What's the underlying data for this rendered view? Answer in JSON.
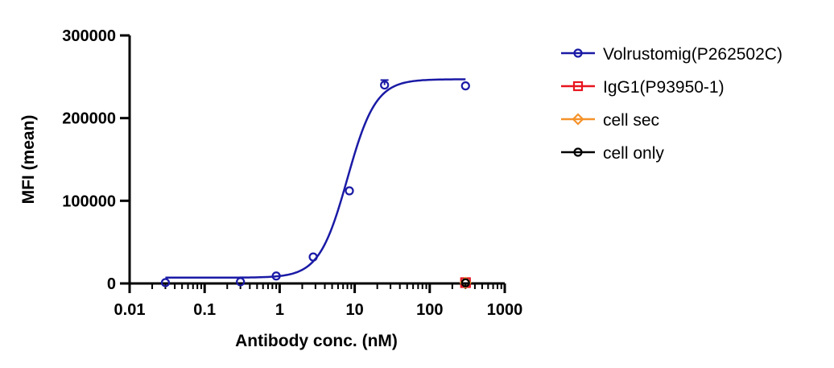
{
  "chart_data": {
    "type": "scatter",
    "title": "",
    "xlabel": "Antibody conc. (nM)",
    "ylabel": "MFI (mean)",
    "x_scale": "log",
    "xlim": [
      0.01,
      1000
    ],
    "ylim": [
      0,
      300000
    ],
    "x_ticks": [
      0.01,
      0.1,
      1,
      10,
      100,
      1000
    ],
    "x_tick_labels": [
      "0.01",
      "0.1",
      "1",
      "10",
      "100",
      "1000"
    ],
    "y_ticks": [
      0,
      100000,
      200000,
      300000
    ],
    "y_tick_labels": [
      "0",
      "100000",
      "200000",
      "300000"
    ],
    "grid": false,
    "legend_position": "right",
    "series": [
      {
        "name": "Volrustomig(P262502C)",
        "color": "#1a1aa6",
        "marker": "circle",
        "x": [
          0.03,
          0.3,
          0.9,
          2.8,
          8.5,
          25,
          300
        ],
        "y": [
          1000,
          2000,
          9000,
          32000,
          112000,
          240000,
          239000
        ],
        "error": [
          0,
          0,
          0,
          0,
          0,
          6000,
          0
        ],
        "fit": {
          "bottom": 7000,
          "top": 247000,
          "ec50": 8.0,
          "hill": 2.3,
          "x_range": [
            0.03,
            300
          ]
        }
      },
      {
        "name": "IgG1(P93950-1)",
        "color": "#e8141e",
        "marker": "square",
        "x": [
          300
        ],
        "y": [
          1000
        ]
      },
      {
        "name": "cell sec",
        "color": "#f5922a",
        "marker": "diamond",
        "x": [
          300
        ],
        "y": [
          800
        ]
      },
      {
        "name": "cell only",
        "color": "#000000",
        "marker": "circle",
        "x": [
          300
        ],
        "y": [
          700
        ]
      }
    ]
  }
}
